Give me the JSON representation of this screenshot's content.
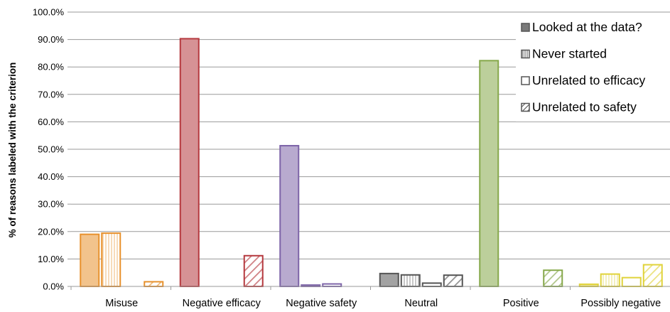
{
  "chart_data": {
    "type": "bar",
    "ylabel": "% of reasons labeled with the criterion",
    "xlabel": "",
    "ylim": [
      0,
      100
    ],
    "y_ticks": [
      "0.0%",
      "10.0%",
      "20.0%",
      "30.0%",
      "40.0%",
      "50.0%",
      "60.0%",
      "70.0%",
      "80.0%",
      "90.0%",
      "100.0%"
    ],
    "grid": true,
    "legend_position": "top-right",
    "categories": [
      "Misuse",
      "Negative efficacy",
      "Negative safety",
      "Neutral",
      "Positive",
      "Possibly negative"
    ],
    "category_colors": [
      "#e8922e",
      "#b5393e",
      "#7d64a8",
      "#555555",
      "#86a84a",
      "#e0d33a"
    ],
    "series": [
      {
        "name": "Looked at the data?",
        "pattern": "solid",
        "values": [
          19.0,
          90.3,
          51.3,
          4.7,
          82.3,
          0.8
        ]
      },
      {
        "name": "Never started",
        "pattern": "vertical",
        "values": [
          19.4,
          0.0,
          0.5,
          4.2,
          0.0,
          4.5
        ]
      },
      {
        "name": "Unrelated to efficacy",
        "pattern": "open",
        "values": [
          0.0,
          0.0,
          0.9,
          1.2,
          0.0,
          3.2
        ]
      },
      {
        "name": "Unrelated to safety",
        "pattern": "diagonal",
        "values": [
          1.7,
          11.2,
          0.0,
          4.1,
          5.9,
          7.9
        ]
      }
    ]
  }
}
